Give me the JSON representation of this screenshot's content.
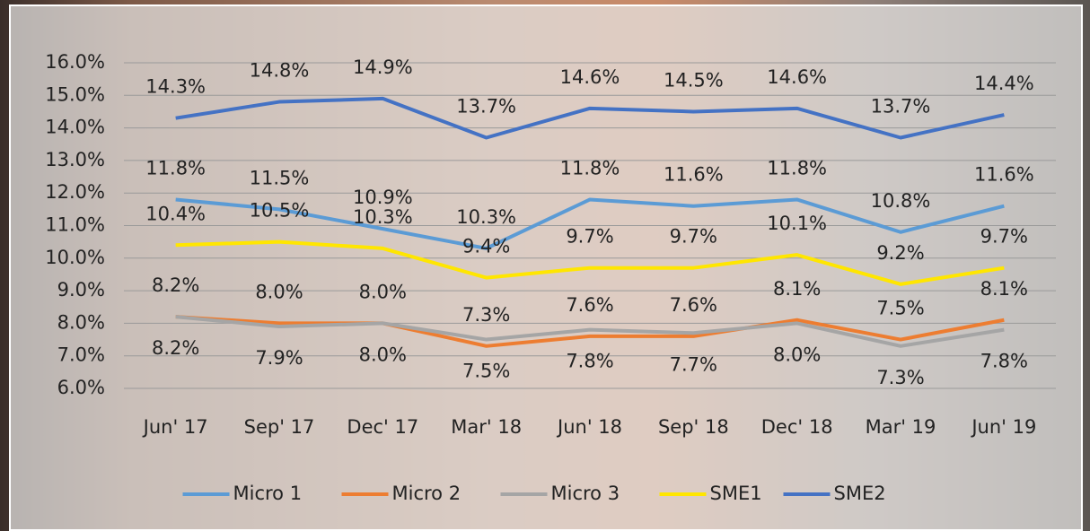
{
  "chart_data": {
    "type": "line",
    "categories": [
      "Jun' 17",
      "Sep' 17",
      "Dec' 17",
      "Mar' 18",
      "Jun' 18",
      "Sep' 18",
      "Dec' 18",
      "Mar' 19",
      "Jun' 19"
    ],
    "series": [
      {
        "name": "Micro 1",
        "color": "#5b9bd5",
        "values": [
          11.8,
          11.5,
          10.9,
          10.3,
          11.8,
          11.6,
          11.8,
          10.8,
          11.6
        ],
        "value_labels": [
          "11.8%",
          "11.5%",
          "10.9%",
          "10.3%",
          "11.8%",
          "11.6%",
          "11.8%",
          "10.8%",
          "11.6%"
        ]
      },
      {
        "name": "Micro 2",
        "color": "#ed7d31",
        "values": [
          8.2,
          8.0,
          8.0,
          7.3,
          7.6,
          7.6,
          8.1,
          7.5,
          8.1
        ],
        "value_labels": [
          "8.2%",
          "8.0%",
          "8.0%",
          "7.3%",
          "7.6%",
          "7.6%",
          "8.1%",
          "7.5%",
          "8.1%"
        ]
      },
      {
        "name": "Micro 3",
        "color": "#a5a5a5",
        "values": [
          8.2,
          7.9,
          8.0,
          7.5,
          7.8,
          7.7,
          8.0,
          7.3,
          7.8
        ],
        "value_labels": [
          "8.2%",
          "7.9%",
          "8.0%",
          "7.5%",
          "7.8%",
          "7.7%",
          "8.0%",
          "7.3%",
          "7.8%"
        ]
      },
      {
        "name": "SME1",
        "color": "#ffe600",
        "values": [
          10.4,
          10.5,
          10.3,
          9.4,
          9.7,
          9.7,
          10.1,
          9.2,
          9.7
        ],
        "value_labels": [
          "10.4%",
          "10.5%",
          "10.3%",
          "9.4%",
          "9.7%",
          "9.7%",
          "10.1%",
          "9.2%",
          "9.7%"
        ]
      },
      {
        "name": "SME2",
        "color": "#4472c4",
        "values": [
          14.3,
          14.8,
          14.9,
          13.7,
          14.6,
          14.5,
          14.6,
          13.7,
          14.4
        ],
        "value_labels": [
          "14.3%",
          "14.8%",
          "14.9%",
          "13.7%",
          "14.6%",
          "14.5%",
          "14.6%",
          "13.7%",
          "14.4%"
        ]
      }
    ],
    "ylim": [
      6,
      16
    ],
    "yticks": [
      {
        "value": 6,
        "label": "6.0%"
      },
      {
        "value": 7,
        "label": "7.0%"
      },
      {
        "value": 8,
        "label": "8.0%"
      },
      {
        "value": 9,
        "label": "9.0%"
      },
      {
        "value": 10,
        "label": "10.0%"
      },
      {
        "value": 11,
        "label": "11.0%"
      },
      {
        "value": 12,
        "label": "12.0%"
      },
      {
        "value": 13,
        "label": "13.0%"
      },
      {
        "value": 14,
        "label": "14.0%"
      },
      {
        "value": 15,
        "label": "15.0%"
      },
      {
        "value": 16,
        "label": "16.0%"
      }
    ],
    "grid": true,
    "legend": "bottom"
  }
}
